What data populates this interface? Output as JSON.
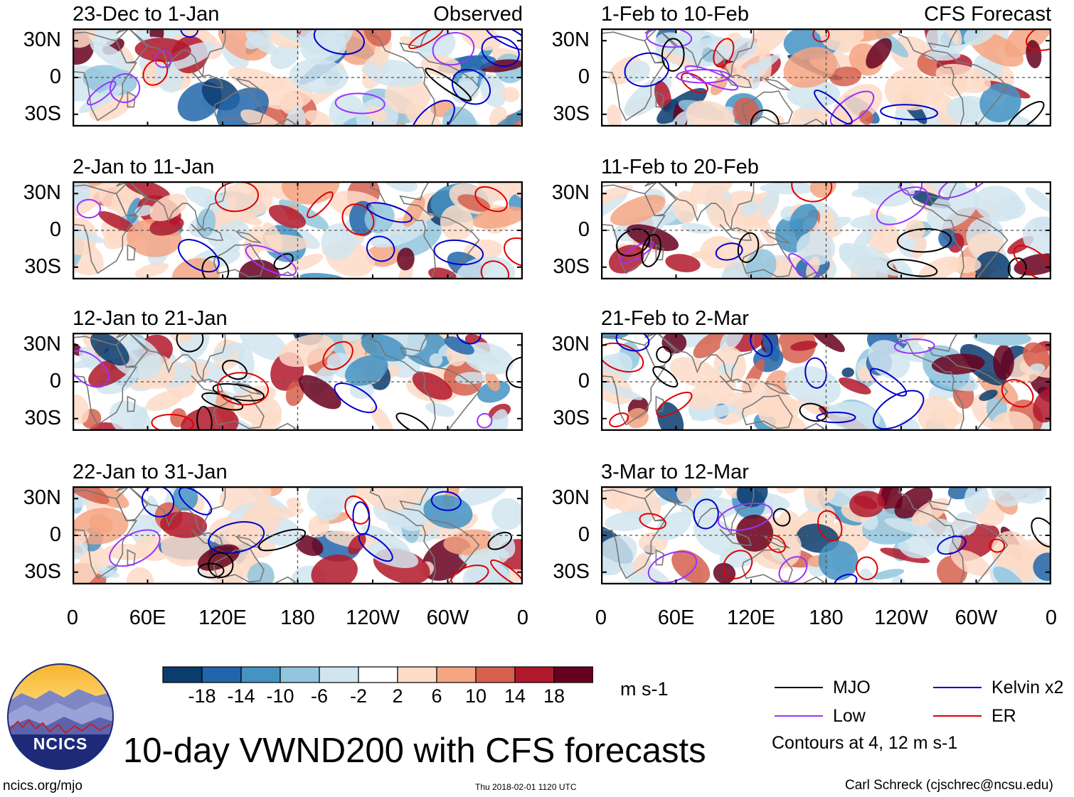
{
  "chart_data": {
    "type": "heatmap",
    "title": "10-day VWND200 with CFS forecasts",
    "variable": "VWND200",
    "units": "m s-1",
    "panels": [
      {
        "period": "23-Dec to 1-Jan",
        "label": "Observed"
      },
      {
        "period": "1-Feb to 10-Feb",
        "label": "CFS Forecast"
      },
      {
        "period": "2-Jan to 11-Jan",
        "label": ""
      },
      {
        "period": "11-Feb to 20-Feb",
        "label": ""
      },
      {
        "period": "12-Jan to 21-Jan",
        "label": ""
      },
      {
        "period": "21-Feb to 2-Mar",
        "label": ""
      },
      {
        "period": "22-Jan to 31-Jan",
        "label": ""
      },
      {
        "period": "3-Mar to 12-Mar",
        "label": ""
      }
    ],
    "y_ticks": [
      "30N",
      "0",
      "30S"
    ],
    "x_ticks": [
      "0",
      "60E",
      "120E",
      "180",
      "120W",
      "60W",
      "0"
    ],
    "colorbar": {
      "tick_labels": [
        "-18",
        "-14",
        "-10",
        "-6",
        "-2",
        "2",
        "6",
        "10",
        "14",
        "18"
      ],
      "colors": [
        "#0a3c6e",
        "#2166ac",
        "#4393c3",
        "#92c5de",
        "#d1e5f0",
        "#ffffff",
        "#fddbc7",
        "#f4a582",
        "#d6604d",
        "#b2182b",
        "#67001f"
      ]
    },
    "legend": [
      {
        "name": "MJO",
        "color": "#000000"
      },
      {
        "name": "Kelvin x2",
        "color": "#0000cc"
      },
      {
        "name": "Low",
        "color": "#9933ff"
      },
      {
        "name": "ER",
        "color": "#e00000"
      }
    ],
    "contour_note": "Contours at 4, 12 m s-1"
  },
  "footer": {
    "logo_text": "NCICS",
    "url": "ncics.org/mjo",
    "timestamp": "Thu 2018-02-01 1120 UTC",
    "credit": "Carl Schreck (cjschrec@ncsu.edu)"
  }
}
